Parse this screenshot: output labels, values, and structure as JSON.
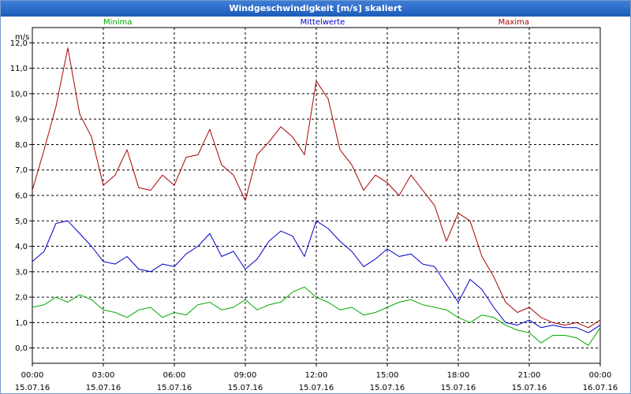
{
  "window": {
    "title": "Windgeschwindigkeit [m/s] skaliert"
  },
  "chart_data": {
    "type": "line",
    "title": "Windgeschwindigkeit [m/s] skaliert",
    "ylabel": "m/s",
    "xlabel": "",
    "ylim": [
      -0.6,
      12.6
    ],
    "xlim": [
      0,
      24
    ],
    "yticks": [
      "0,0",
      "1,0",
      "2,0",
      "3,0",
      "4,0",
      "5,0",
      "6,0",
      "7,0",
      "8,0",
      "9,0",
      "10,0",
      "11,0",
      "12,0"
    ],
    "xticks": [
      {
        "time": "00:00",
        "date": "15.07.16"
      },
      {
        "time": "03:00",
        "date": "15.07.16"
      },
      {
        "time": "06:00",
        "date": "15.07.16"
      },
      {
        "time": "09:00",
        "date": "15.07.16"
      },
      {
        "time": "12:00",
        "date": "15.07.16"
      },
      {
        "time": "15:00",
        "date": "15.07.16"
      },
      {
        "time": "18:00",
        "date": "15.07.16"
      },
      {
        "time": "21:00",
        "date": "15.07.16"
      },
      {
        "time": "00:00",
        "date": "16.07.16"
      }
    ],
    "grid": true,
    "legend_position": "top",
    "series": [
      {
        "name": "Minima",
        "color": "#00aa00",
        "x": [
          0,
          0.5,
          1,
          1.5,
          2,
          2.5,
          3,
          3.5,
          4,
          4.5,
          5,
          5.5,
          6,
          6.5,
          7,
          7.5,
          8,
          8.5,
          9,
          9.5,
          10,
          10.5,
          11,
          11.5,
          12,
          12.5,
          13,
          13.5,
          14,
          14.5,
          15,
          15.5,
          16,
          16.5,
          17,
          17.5,
          18,
          18.5,
          19,
          19.5,
          20,
          20.5,
          21,
          21.5,
          22,
          22.5,
          23,
          23.5,
          24
        ],
        "values": [
          1.6,
          1.7,
          2.0,
          1.8,
          2.1,
          1.9,
          1.5,
          1.4,
          1.2,
          1.5,
          1.6,
          1.2,
          1.4,
          1.3,
          1.7,
          1.8,
          1.5,
          1.6,
          1.9,
          1.5,
          1.7,
          1.8,
          2.2,
          2.4,
          2.0,
          1.8,
          1.5,
          1.6,
          1.3,
          1.4,
          1.6,
          1.8,
          1.9,
          1.7,
          1.6,
          1.5,
          1.2,
          1.0,
          1.3,
          1.2,
          0.9,
          0.7,
          0.6,
          0.2,
          0.5,
          0.5,
          0.4,
          0.1,
          0.8
        ]
      },
      {
        "name": "Mittelwerte",
        "color": "#0000cc",
        "x": [
          0,
          0.5,
          1,
          1.5,
          2,
          2.5,
          3,
          3.5,
          4,
          4.5,
          5,
          5.5,
          6,
          6.5,
          7,
          7.5,
          8,
          8.5,
          9,
          9.5,
          10,
          10.5,
          11,
          11.5,
          12,
          12.5,
          13,
          13.5,
          14,
          14.5,
          15,
          15.5,
          16,
          16.5,
          17,
          17.5,
          18,
          18.5,
          19,
          19.5,
          20,
          20.5,
          21,
          21.5,
          22,
          22.5,
          23,
          23.5,
          24
        ],
        "values": [
          3.4,
          3.8,
          4.9,
          5.0,
          4.5,
          4.0,
          3.4,
          3.3,
          3.6,
          3.1,
          3.0,
          3.3,
          3.2,
          3.7,
          4.0,
          4.5,
          3.6,
          3.8,
          3.1,
          3.5,
          4.2,
          4.6,
          4.4,
          3.6,
          5.0,
          4.7,
          4.2,
          3.8,
          3.2,
          3.5,
          3.9,
          3.6,
          3.7,
          3.3,
          3.2,
          2.5,
          1.8,
          2.7,
          2.3,
          1.6,
          1.0,
          0.9,
          1.1,
          0.8,
          0.9,
          0.8,
          0.8,
          0.6,
          0.9
        ]
      },
      {
        "name": "Maxima",
        "color": "#aa0000",
        "x": [
          0,
          0.5,
          1,
          1.5,
          2,
          2.5,
          3,
          3.5,
          4,
          4.5,
          5,
          5.5,
          6,
          6.5,
          7,
          7.5,
          8,
          8.5,
          9,
          9.5,
          10,
          10.5,
          11,
          11.5,
          12,
          12.5,
          13,
          13.5,
          14,
          14.5,
          15,
          15.5,
          16,
          16.5,
          17,
          17.5,
          18,
          18.5,
          19,
          19.5,
          20,
          20.5,
          21,
          21.5,
          22,
          22.5,
          23,
          23.5,
          24
        ],
        "values": [
          6.2,
          7.8,
          9.5,
          11.8,
          9.2,
          8.3,
          6.4,
          6.8,
          7.8,
          6.3,
          6.2,
          6.8,
          6.4,
          7.5,
          7.6,
          8.6,
          7.2,
          6.8,
          5.8,
          7.6,
          8.1,
          8.7,
          8.3,
          7.6,
          10.5,
          9.8,
          7.8,
          7.2,
          6.2,
          6.8,
          6.5,
          6.0,
          6.8,
          6.2,
          5.6,
          4.2,
          5.3,
          5.0,
          3.6,
          2.8,
          1.8,
          1.4,
          1.6,
          1.2,
          1.0,
          0.9,
          1.0,
          0.8,
          1.1
        ]
      }
    ]
  }
}
